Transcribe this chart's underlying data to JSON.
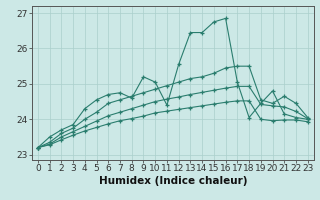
{
  "xlabel": "Humidex (Indice chaleur)",
  "x": [
    0,
    1,
    2,
    3,
    4,
    5,
    6,
    7,
    8,
    9,
    10,
    11,
    12,
    13,
    14,
    15,
    16,
    17,
    18,
    19,
    20,
    21,
    22,
    23
  ],
  "line1": [
    23.2,
    23.5,
    23.7,
    23.85,
    24.3,
    24.55,
    24.7,
    24.75,
    24.6,
    25.2,
    25.05,
    24.4,
    25.55,
    26.45,
    26.45,
    26.75,
    26.85,
    25.05,
    24.05,
    24.45,
    24.8,
    24.15,
    24.05,
    24.0
  ],
  "line2": [
    23.2,
    23.35,
    23.6,
    23.75,
    24.0,
    24.2,
    24.45,
    24.55,
    24.65,
    24.75,
    24.85,
    24.95,
    25.05,
    25.15,
    25.2,
    25.3,
    25.45,
    25.5,
    25.5,
    24.55,
    24.45,
    24.65,
    24.45,
    24.05
  ],
  "line3": [
    23.2,
    23.3,
    23.5,
    23.65,
    23.8,
    23.95,
    24.1,
    24.2,
    24.3,
    24.4,
    24.5,
    24.57,
    24.63,
    24.7,
    24.76,
    24.82,
    24.88,
    24.93,
    24.93,
    24.42,
    24.38,
    24.35,
    24.22,
    24.02
  ],
  "line4": [
    23.2,
    23.28,
    23.42,
    23.55,
    23.67,
    23.77,
    23.87,
    23.96,
    24.02,
    24.09,
    24.18,
    24.23,
    24.28,
    24.33,
    24.38,
    24.43,
    24.48,
    24.52,
    24.52,
    24.0,
    23.96,
    23.98,
    23.98,
    23.93
  ],
  "line_color": "#2a7d6e",
  "bg_color": "#cce8e6",
  "grid_color": "#aacfcc",
  "tick_label_fontsize": 6.5,
  "xlabel_fontsize": 7.5,
  "ylim": [
    22.85,
    27.2
  ],
  "xlim": [
    -0.5,
    23.5
  ],
  "yticks": [
    23,
    24,
    25,
    26,
    27
  ],
  "xticks": [
    0,
    1,
    2,
    3,
    4,
    5,
    6,
    7,
    8,
    9,
    10,
    11,
    12,
    13,
    14,
    15,
    16,
    17,
    18,
    19,
    20,
    21,
    22,
    23
  ]
}
